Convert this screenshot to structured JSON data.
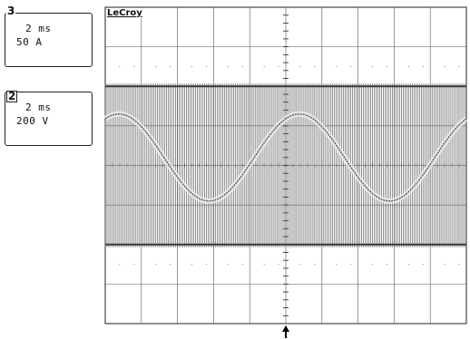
{
  "brand": "LeCroy",
  "channels": [
    {
      "number": "3",
      "timebase": "2 ms",
      "scale": "50 A"
    },
    {
      "number": "2",
      "timebase": "2 ms",
      "scale": "200 V"
    }
  ],
  "display": {
    "background": "#ffffff",
    "grid_color": "#555555",
    "trace_color": "#333333",
    "divisions_x": 10,
    "divisions_y": 8
  },
  "traces": {
    "switching_voltage": {
      "unit": "div",
      "high_level": 2.0,
      "low_level": -2.0,
      "switching_cycles_per_division": 10
    },
    "current": {
      "unit": "div",
      "cycles_on_screen": 2,
      "amplitude": 1.1,
      "offset": 0.2
    }
  },
  "trigger_marker": "trigger-arrow"
}
